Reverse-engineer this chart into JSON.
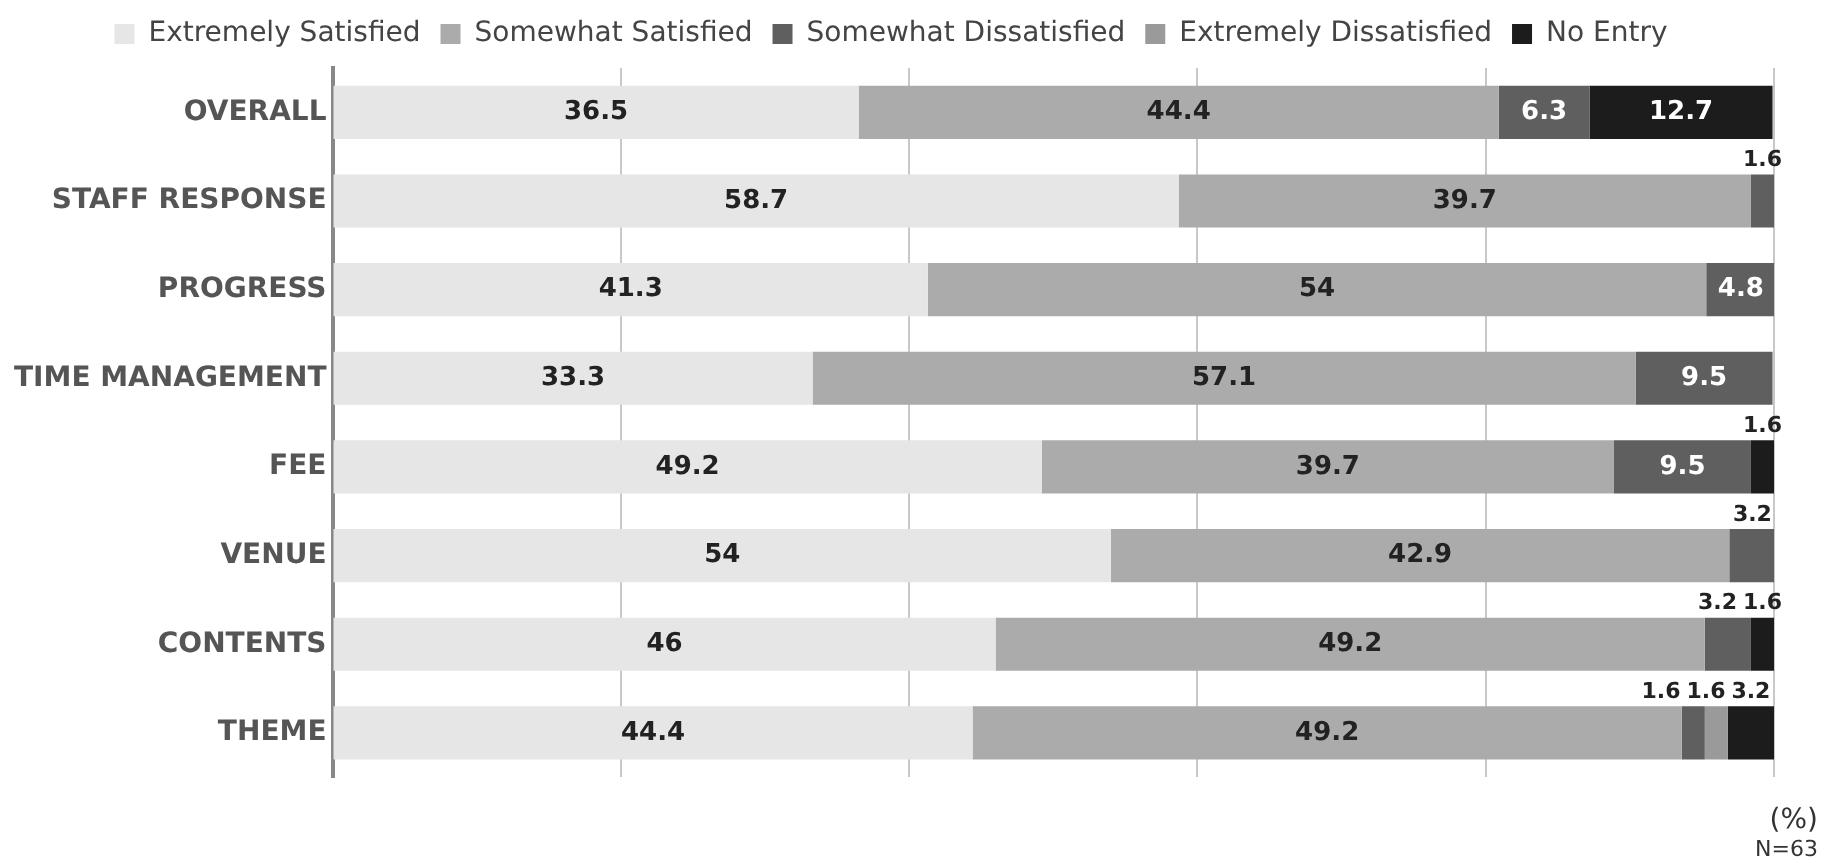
{
  "chart_data": {
    "type": "bar",
    "orientation": "horizontal",
    "stacked": true,
    "categories": [
      "OVERALL",
      "STAFF RESPONSE",
      "PROGRESS",
      "TIME MANAGEMENT",
      "FEE",
      "VENUE",
      "CONTENTS",
      "THEME"
    ],
    "series": [
      {
        "name": "Extremely Satisfied",
        "color": "#e6e6e6",
        "values": [
          36.5,
          58.7,
          41.3,
          33.3,
          49.2,
          54,
          46,
          44.4
        ]
      },
      {
        "name": "Somewhat Satisfied",
        "color": "#ababab",
        "values": [
          44.4,
          39.7,
          54,
          57.1,
          39.7,
          42.9,
          49.2,
          49.2
        ]
      },
      {
        "name": "Somewhat Dissatisfied",
        "color": "#5f5f5f",
        "values": [
          6.3,
          1.6,
          4.8,
          9.5,
          9.5,
          3.2,
          3.2,
          1.6
        ]
      },
      {
        "name": "Extremely Dissatisfied",
        "color": "#9a9a9a",
        "values": [
          null,
          null,
          null,
          null,
          null,
          null,
          null,
          1.6
        ]
      },
      {
        "name": "No Entry",
        "color": "#1c1c1c",
        "values": [
          12.7,
          null,
          null,
          null,
          1.6,
          null,
          1.6,
          3.2
        ]
      }
    ],
    "xlim": [
      0,
      100
    ],
    "xticks": [
      {
        "value": 0,
        "label": null
      },
      {
        "value": 20,
        "label": null
      },
      {
        "value": 40,
        "label": null
      },
      {
        "value": 60,
        "label": null
      },
      {
        "value": 80,
        "label": null
      },
      {
        "value": 100,
        "label": null
      }
    ],
    "tick_labels": "y",
    "grid": "x",
    "legend": "top",
    "data_labels": true,
    "annotations": [
      "(%)",
      "N=63"
    ]
  }
}
